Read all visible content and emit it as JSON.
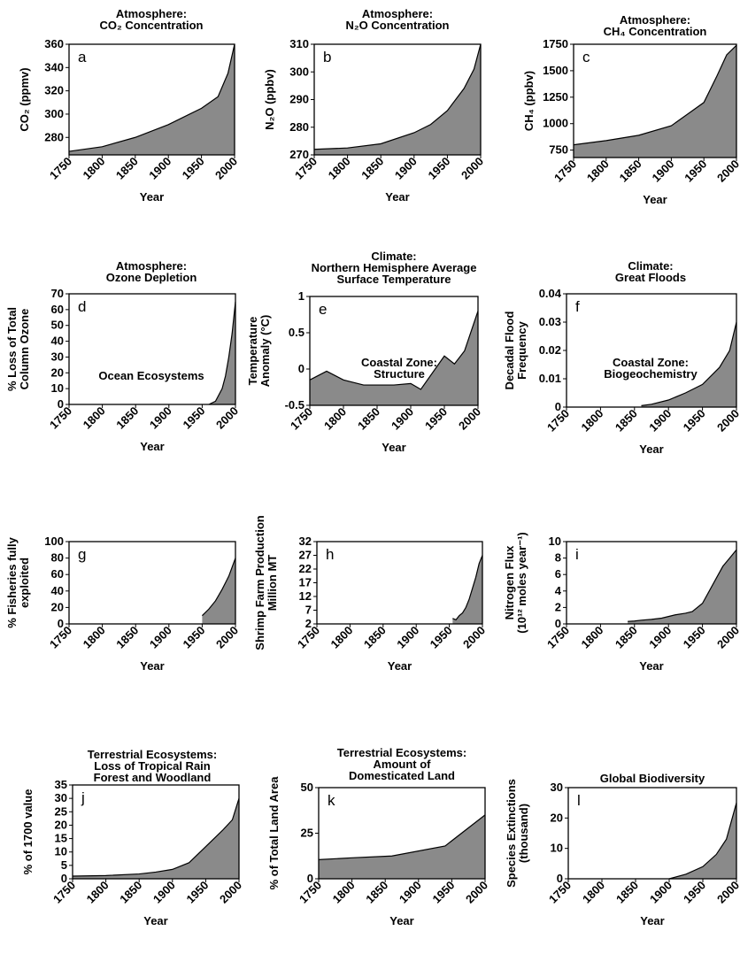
{
  "chart_data": [
    {
      "id": "a",
      "type": "area",
      "letter": "a",
      "title": [
        "Atmosphere:",
        "CO₂ Concentration"
      ],
      "xlabel": "Year",
      "ylabel": "CO₂ (ppmv)",
      "xlim": [
        1750,
        2000
      ],
      "ylim": [
        265,
        360
      ],
      "yticks": [
        280,
        300,
        320,
        340,
        360
      ],
      "xticks": [
        1750,
        1800,
        1850,
        1900,
        1950,
        2000
      ],
      "x": [
        1750,
        1800,
        1850,
        1900,
        1950,
        1975,
        1990,
        2000
      ],
      "y": [
        268,
        272,
        280,
        291,
        305,
        315,
        335,
        360
      ]
    },
    {
      "id": "b",
      "type": "area",
      "letter": "b",
      "title": [
        "Atmosphere:",
        "N₂O Concentration"
      ],
      "xlabel": "Year",
      "ylabel": "N₂O (ppbv)",
      "xlim": [
        1750,
        2000
      ],
      "ylim": [
        270,
        310
      ],
      "yticks": [
        270,
        280,
        290,
        300,
        310
      ],
      "xticks": [
        1750,
        1800,
        1850,
        1900,
        1950,
        2000
      ],
      "x": [
        1750,
        1800,
        1850,
        1900,
        1925,
        1950,
        1975,
        1990,
        2000
      ],
      "y": [
        272,
        272.5,
        274,
        278,
        281,
        286,
        294,
        301,
        310
      ]
    },
    {
      "id": "c",
      "type": "area",
      "letter": "c",
      "title": [
        "Atmosphere:",
        "CH₄ Concentration"
      ],
      "xlabel": "Year",
      "ylabel": "CH₄ (ppbv)",
      "xlim": [
        1750,
        2000
      ],
      "ylim": [
        680,
        1750
      ],
      "yticks": [
        750,
        1000,
        1250,
        1500,
        1750
      ],
      "xticks": [
        1750,
        1800,
        1850,
        1900,
        1950,
        2000
      ],
      "x": [
        1750,
        1800,
        1850,
        1900,
        1950,
        1970,
        1985,
        2000
      ],
      "y": [
        800,
        840,
        890,
        980,
        1200,
        1450,
        1650,
        1740
      ]
    },
    {
      "id": "d",
      "type": "area",
      "letter": "d",
      "title": [
        "Atmosphere:",
        "Ozone Depletion"
      ],
      "xlabel": "Year",
      "ylabel": [
        "% Loss of Total",
        "Column Ozone"
      ],
      "xlim": [
        1750,
        2000
      ],
      "ylim": [
        0,
        70
      ],
      "yticks": [
        0,
        10,
        20,
        30,
        40,
        50,
        60,
        70
      ],
      "xticks": [
        1750,
        1800,
        1850,
        1900,
        1950,
        2000
      ],
      "x": [
        1960,
        1970,
        1980,
        1985,
        1990,
        1995,
        2000
      ],
      "y": [
        0,
        2,
        10,
        18,
        30,
        45,
        65
      ]
    },
    {
      "id": "e",
      "type": "area",
      "letter": "e",
      "title": [
        "Climate:",
        "Northern Hemisphere Average",
        "Surface Temperature"
      ],
      "xlabel": "Year",
      "ylabel": [
        "Temperature",
        "Anomaly (°C)"
      ],
      "xlim": [
        1750,
        2000
      ],
      "ylim": [
        -0.5,
        1.0
      ],
      "yticks": [
        -0.5,
        0,
        0.5,
        1.0
      ],
      "xticks": [
        1750,
        1800,
        1850,
        1900,
        1950,
        2000
      ],
      "x": [
        1750,
        1775,
        1800,
        1830,
        1850,
        1875,
        1900,
        1915,
        1950,
        1965,
        1980,
        2000
      ],
      "y": [
        -0.15,
        -0.03,
        -0.15,
        -0.22,
        -0.22,
        -0.22,
        -0.2,
        -0.28,
        0.18,
        0.07,
        0.25,
        0.8
      ]
    },
    {
      "id": "f",
      "type": "area",
      "letter": "f",
      "title": [
        "Climate:",
        "Great Floods"
      ],
      "xlabel": "Year",
      "ylabel": [
        "Decadal Flood",
        "Frequency"
      ],
      "xlim": [
        1750,
        2000
      ],
      "ylim": [
        0,
        0.04
      ],
      "yticks": [
        0,
        0.01,
        0.02,
        0.03,
        0.04
      ],
      "xticks": [
        1750,
        1800,
        1850,
        1900,
        1950,
        2000
      ],
      "x": [
        1860,
        1875,
        1900,
        1925,
        1950,
        1975,
        1990,
        2000
      ],
      "y": [
        0.0005,
        0.001,
        0.0025,
        0.005,
        0.008,
        0.014,
        0.02,
        0.03
      ]
    },
    {
      "id": "g",
      "type": "area",
      "letter": "g",
      "title": [
        "Ocean Ecosystems"
      ],
      "xlabel": "Year",
      "ylabel": [
        "% Fisheries fully",
        "exploited"
      ],
      "xlim": [
        1750,
        2000
      ],
      "ylim": [
        0,
        100
      ],
      "yticks": [
        0,
        20,
        40,
        60,
        80,
        100
      ],
      "xticks": [
        1750,
        1800,
        1850,
        1900,
        1950,
        2000
      ],
      "x": [
        1950,
        1960,
        1970,
        1980,
        1990,
        2000
      ],
      "y": [
        10,
        18,
        28,
        42,
        58,
        80
      ]
    },
    {
      "id": "h",
      "type": "area",
      "letter": "h",
      "title": [
        "Coastal Zone:",
        "Structure"
      ],
      "xlabel": "Year",
      "ylabel": [
        "Shrimp Farm Production",
        "Million MT"
      ],
      "xlim": [
        1750,
        2000
      ],
      "ylim": [
        2,
        32
      ],
      "yticks": [
        2,
        7,
        12,
        17,
        22,
        27,
        32
      ],
      "xticks": [
        1750,
        1800,
        1850,
        1900,
        1950,
        2000
      ],
      "x": [
        1955,
        1960,
        1965,
        1970,
        1975,
        1980,
        1985,
        1990,
        1995,
        2000
      ],
      "y": [
        4,
        3.5,
        5,
        6,
        8,
        11,
        15,
        19,
        24,
        27
      ]
    },
    {
      "id": "i",
      "type": "area",
      "letter": "i",
      "title": [
        "Coastal Zone:",
        "Biogeochemistry"
      ],
      "xlabel": "Year",
      "ylabel": [
        "Nitrogen Flux",
        "(10¹² moles year⁻¹)"
      ],
      "xlim": [
        1750,
        2000
      ],
      "ylim": [
        0,
        10
      ],
      "yticks": [
        0,
        2,
        4,
        6,
        8,
        10
      ],
      "xticks": [
        1750,
        1800,
        1850,
        1900,
        1950,
        2000
      ],
      "x": [
        1840,
        1850,
        1860,
        1875,
        1890,
        1900,
        1910,
        1925,
        1935,
        1950,
        1960,
        1970,
        1980,
        1990,
        2000
      ],
      "y": [
        0.3,
        0.35,
        0.45,
        0.55,
        0.7,
        0.9,
        1.1,
        1.3,
        1.5,
        2.5,
        4,
        5.5,
        7,
        8,
        9
      ]
    },
    {
      "id": "j",
      "type": "area",
      "letter": "j",
      "title": [
        "Terrestrial Ecosystems:",
        "Loss of Tropical Rain",
        "Forest and Woodland"
      ],
      "xlabel": "Year",
      "ylabel": "% of 1700 value",
      "xlim": [
        1750,
        2000
      ],
      "ylim": [
        0,
        35
      ],
      "yticks": [
        0,
        5,
        10,
        15,
        20,
        25,
        30,
        35
      ],
      "xticks": [
        1750,
        1800,
        1850,
        1900,
        1950,
        2000
      ],
      "x": [
        1750,
        1800,
        1850,
        1875,
        1900,
        1925,
        1950,
        1975,
        1990,
        2000
      ],
      "y": [
        1,
        1.2,
        1.8,
        2.5,
        3.5,
        6,
        12,
        18,
        22,
        30
      ]
    },
    {
      "id": "k",
      "type": "area",
      "letter": "k",
      "title": [
        "Terrestrial Ecosystems:",
        "Amount of",
        "Domesticated Land"
      ],
      "xlabel": "Year",
      "ylabel": "% of Total Land Area",
      "xlim": [
        1750,
        2000
      ],
      "ylim": [
        0,
        50
      ],
      "yticks": [
        0,
        25,
        50
      ],
      "xticks": [
        1750,
        1800,
        1850,
        1900,
        1950,
        2000
      ],
      "x": [
        1750,
        1800,
        1860,
        1940,
        2000
      ],
      "y": [
        10.5,
        11.5,
        12.5,
        18,
        35
      ]
    },
    {
      "id": "l",
      "type": "area",
      "letter": "l",
      "title": [
        "Global Biodiversity"
      ],
      "xlabel": "Year",
      "ylabel": [
        "Species Extinctions",
        "(thousand)"
      ],
      "xlim": [
        1750,
        2000
      ],
      "ylim": [
        0,
        30
      ],
      "yticks": [
        0,
        10,
        20,
        30
      ],
      "xticks": [
        1750,
        1800,
        1850,
        1900,
        1950,
        2000
      ],
      "x": [
        1900,
        1925,
        1950,
        1970,
        1985,
        2000
      ],
      "y": [
        0,
        1.5,
        4,
        8,
        13,
        25
      ]
    }
  ]
}
